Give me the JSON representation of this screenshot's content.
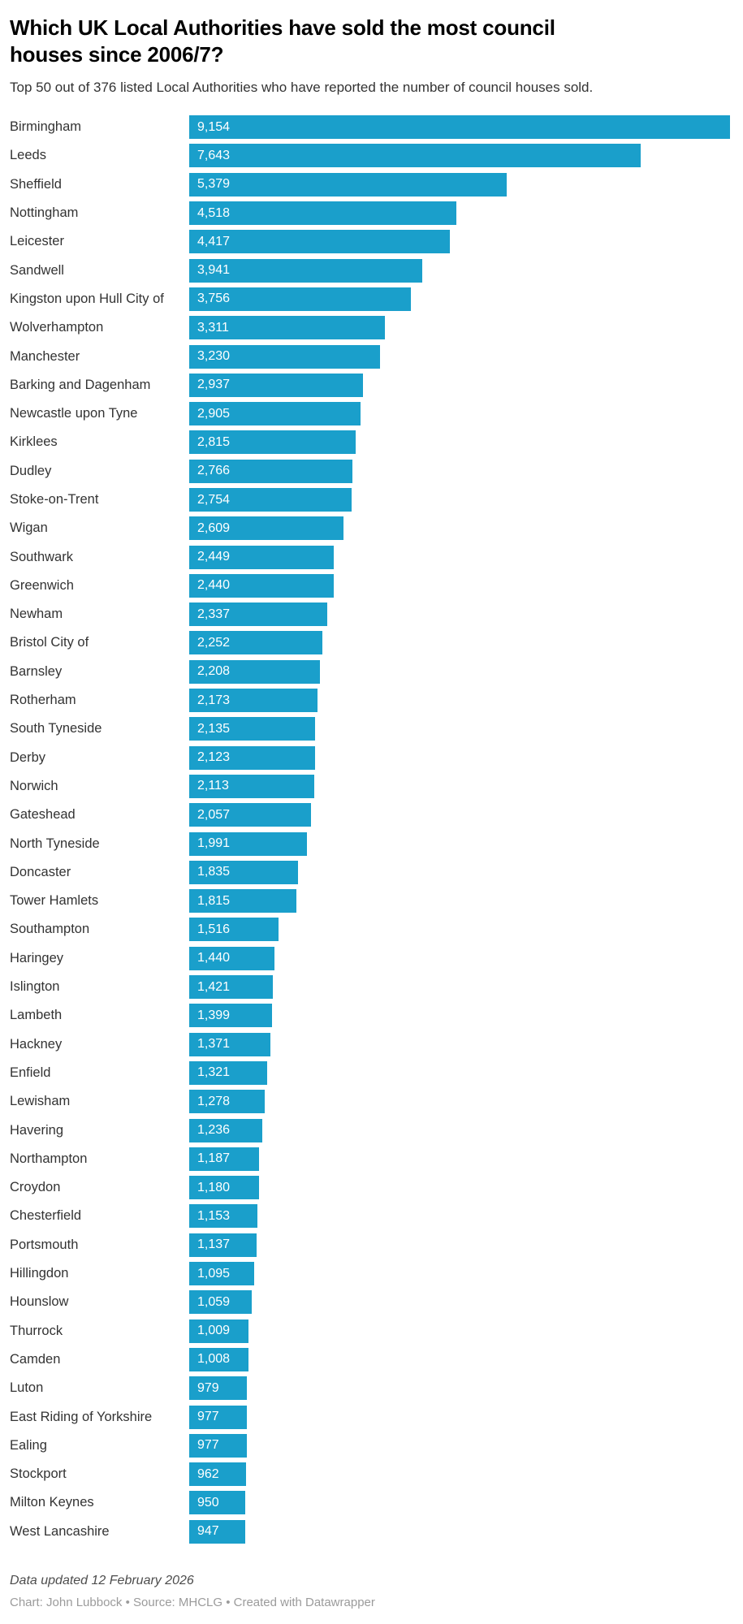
{
  "header": {
    "title_line1": "Which UK Local Authorities have sold the most council",
    "title_line2": "houses since 2006/7?",
    "subtitle": "Top 50 out of 376 listed Local Authorities who have reported the number of council houses sold."
  },
  "chart_data": {
    "type": "bar",
    "orientation": "horizontal",
    "title": "Which UK Local Authorities have sold the most council houses since 2006/7?",
    "subtitle": "Top 50 out of 376 listed Local Authorities who have reported the number of council houses sold.",
    "xlabel": "",
    "ylabel": "",
    "xlim": [
      0,
      9154
    ],
    "grid": false,
    "legend": false,
    "bar_color": "#1a9fcb",
    "value_label_color": "#ffffff",
    "categories": [
      "Birmingham",
      "Leeds",
      "Sheffield",
      "Nottingham",
      "Leicester",
      "Sandwell",
      "Kingston upon Hull City of",
      "Wolverhampton",
      "Manchester",
      "Barking and Dagenham",
      "Newcastle upon Tyne",
      "Kirklees",
      "Dudley",
      "Stoke-on-Trent",
      "Wigan",
      "Southwark",
      "Greenwich",
      "Newham",
      "Bristol City of",
      "Barnsley",
      "Rotherham",
      "South Tyneside",
      "Derby",
      "Norwich",
      "Gateshead",
      "North Tyneside",
      "Doncaster",
      "Tower Hamlets",
      "Southampton",
      "Haringey",
      "Islington",
      "Lambeth",
      "Hackney",
      "Enfield",
      "Lewisham",
      "Havering",
      "Northampton",
      "Croydon",
      "Chesterfield",
      "Portsmouth",
      "Hillingdon",
      "Hounslow",
      "Thurrock",
      "Camden",
      "Luton",
      "East Riding of Yorkshire",
      "Ealing",
      "Stockport",
      "Milton Keynes",
      "West Lancashire"
    ],
    "values": [
      9154,
      7643,
      5379,
      4518,
      4417,
      3941,
      3756,
      3311,
      3230,
      2937,
      2905,
      2815,
      2766,
      2754,
      2609,
      2449,
      2440,
      2337,
      2252,
      2208,
      2173,
      2135,
      2123,
      2113,
      2057,
      1991,
      1835,
      1815,
      1516,
      1440,
      1421,
      1399,
      1371,
      1321,
      1278,
      1236,
      1187,
      1180,
      1153,
      1137,
      1095,
      1059,
      1009,
      1008,
      979,
      977,
      977,
      962,
      950,
      947
    ],
    "value_labels": [
      "9,154",
      "7,643",
      "5,379",
      "4,518",
      "4,417",
      "3,941",
      "3,756",
      "3,311",
      "3,230",
      "2,937",
      "2,905",
      "2,815",
      "2,766",
      "2,754",
      "2,609",
      "2,449",
      "2,440",
      "2,337",
      "2,252",
      "2,208",
      "2,173",
      "2,135",
      "2,123",
      "2,113",
      "2,057",
      "1,991",
      "1,835",
      "1,815",
      "1,516",
      "1,440",
      "1,421",
      "1,399",
      "1,371",
      "1,321",
      "1,278",
      "1,236",
      "1,187",
      "1,180",
      "1,153",
      "1,137",
      "1,095",
      "1,059",
      "1,009",
      "1,008",
      "979",
      "977",
      "977",
      "962",
      "950",
      "947"
    ]
  },
  "footer": {
    "updated": "Data updated 12 February 2026",
    "credit": "Chart: John Lubbock • Source: MHCLG • Created with Datawrapper"
  }
}
